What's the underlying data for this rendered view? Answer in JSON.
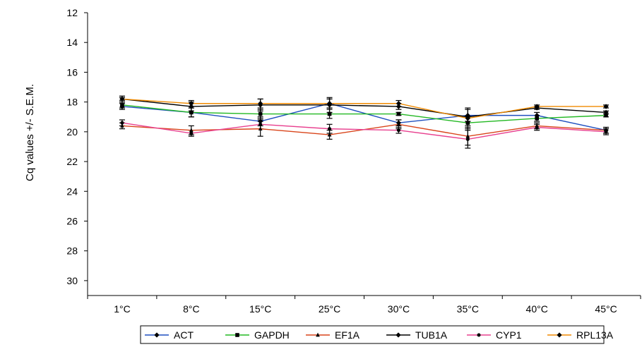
{
  "chart_data": {
    "type": "line",
    "title": "",
    "xlabel": "",
    "ylabel": "Cq values +/- S.E.M.",
    "categories": [
      "1°C",
      "8°C",
      "15°C",
      "25°C",
      "30°C",
      "35°C",
      "40°C",
      "45°C"
    ],
    "yticks": [
      "12",
      "14",
      "16",
      "18",
      "20",
      "22",
      "24",
      "26",
      "28",
      "30"
    ],
    "ylim": [
      12,
      31
    ],
    "y_inverted": true,
    "grid": false,
    "legend_position": "bottom",
    "series": [
      {
        "name": "ACT",
        "color": "#1f4fbf",
        "marker": "diamond",
        "values": [
          18.3,
          18.7,
          19.3,
          18.1,
          19.4,
          18.9,
          18.9,
          19.9
        ],
        "errors": [
          0.2,
          0.3,
          0.3,
          0.3,
          0.2,
          0.4,
          0.2,
          0.2
        ]
      },
      {
        "name": "GAPDH",
        "color": "#22b822",
        "marker": "square",
        "values": [
          18.2,
          18.7,
          18.8,
          18.8,
          18.8,
          19.4,
          19.1,
          18.9
        ],
        "errors": [
          0.2,
          0.3,
          0.3,
          0.3,
          0.1,
          0.4,
          0.2,
          0.1
        ]
      },
      {
        "name": "EF1A",
        "color": "#d9441a",
        "marker": "triangle",
        "values": [
          19.6,
          19.9,
          19.8,
          20.2,
          19.5,
          20.3,
          19.6,
          19.9
        ],
        "errors": [
          0.2,
          0.3,
          0.5,
          0.3,
          0.3,
          0.6,
          0.2,
          0.2
        ]
      },
      {
        "name": "TUB1A",
        "color": "#000000",
        "marker": "diamond",
        "values": [
          17.8,
          18.3,
          18.2,
          18.2,
          18.3,
          19.0,
          18.4,
          18.7
        ],
        "errors": [
          0.2,
          0.3,
          0.4,
          0.5,
          0.2,
          0.6,
          0.1,
          0.1
        ]
      },
      {
        "name": "CYP1",
        "color": "#e8408f",
        "marker": "circle",
        "values": [
          19.4,
          20.1,
          19.5,
          19.8,
          19.9,
          20.5,
          19.7,
          20.0
        ],
        "errors": [
          0.2,
          0.2,
          0.3,
          0.3,
          0.2,
          0.6,
          0.2,
          0.2
        ]
      },
      {
        "name": "RPL13A",
        "color": "#f08a00",
        "marker": "diamond",
        "values": [
          17.8,
          18.1,
          18.1,
          18.1,
          18.1,
          19.1,
          18.3,
          18.3
        ],
        "errors": [
          0.1,
          0.2,
          0.3,
          0.3,
          0.2,
          0.2,
          0.1,
          0.1
        ]
      }
    ]
  }
}
